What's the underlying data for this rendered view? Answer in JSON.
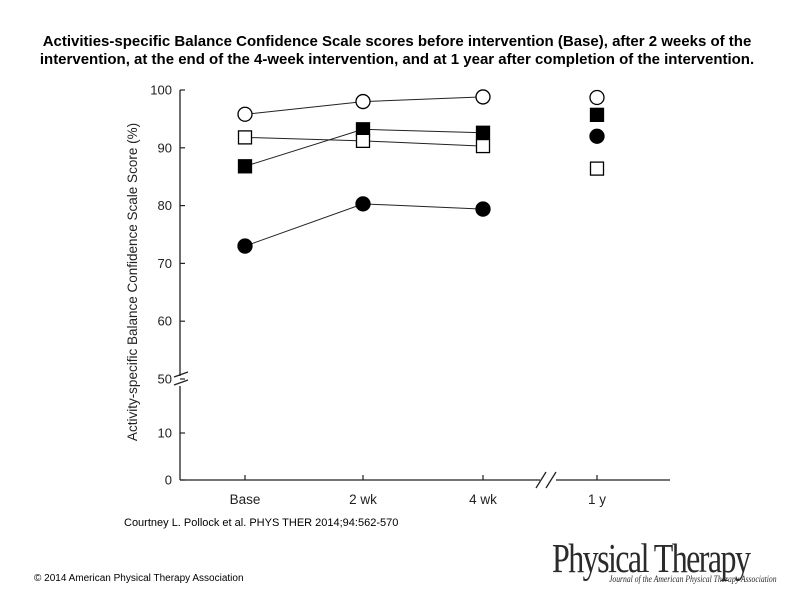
{
  "title": "Activities-specific Balance Confidence Scale scores before intervention (Base), after 2 weeks of the intervention, at the end of the 4-week intervention, and at 1 year after completion of the intervention.",
  "citation": "Courtney L. Pollock et al. PHYS THER 2014;94:562-570",
  "copyright": "© 2014 American Physical Therapy Association",
  "logo": {
    "title": "Physical Therapy",
    "subtitle": "Journal of the American Physical Therapy Association"
  },
  "chart_data": {
    "type": "scatter",
    "title": "",
    "xlabel": "",
    "ylabel": "Activity-specific Balance Confidence Scale Score (%)",
    "categories": [
      "Base",
      "2 wk",
      "4 wk",
      "1 y"
    ],
    "yticks": [
      "100",
      "90",
      "80",
      "70",
      "60",
      "50",
      "10",
      "0"
    ],
    "ylim": [
      0,
      100
    ],
    "axis_break_y": "between 10 and 50",
    "axis_break_x": "between 4 wk and 1 y",
    "connected_categories": [
      "Base",
      "2 wk",
      "4 wk"
    ],
    "series": [
      {
        "name": "open circle",
        "marker": "circle",
        "fill": "open",
        "values": [
          95.8,
          98.0,
          98.8,
          98.7
        ]
      },
      {
        "name": "filled square",
        "marker": "square",
        "fill": "filled",
        "values": [
          86.8,
          93.2,
          92.6,
          95.7
        ]
      },
      {
        "name": "open square",
        "marker": "square",
        "fill": "open",
        "values": [
          91.8,
          91.2,
          90.3,
          86.4
        ]
      },
      {
        "name": "filled circle",
        "marker": "circle",
        "fill": "filled",
        "values": [
          73.0,
          80.3,
          79.4,
          92.0
        ]
      }
    ]
  }
}
